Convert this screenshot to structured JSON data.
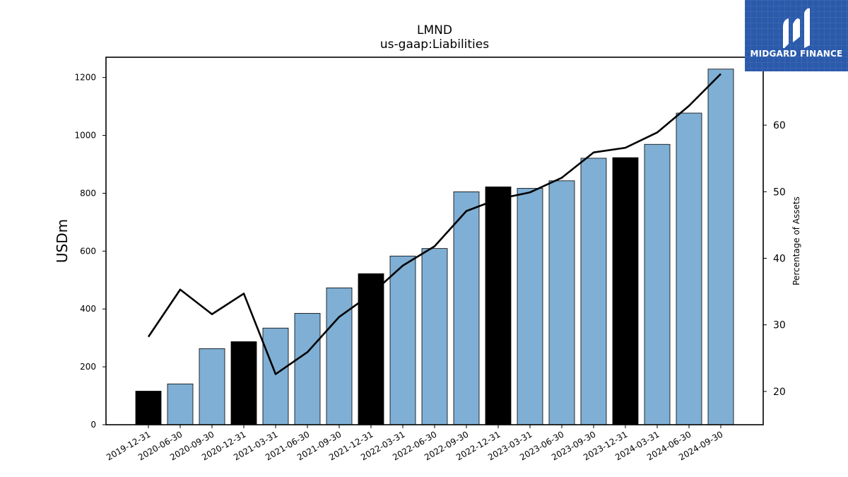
{
  "brand": {
    "name": "MIDGARD FINANCE",
    "logo_icon": "midgard-logo-icon",
    "bg_color": "#2b5aab"
  },
  "chart_data": {
    "type": "bar",
    "title": "LMND",
    "subtitle": "us-gaap:Liabilities",
    "ylabel": "USDm",
    "ylabel_right": "Percentage of Assets",
    "ylim": [
      0,
      1270
    ],
    "ylim_right": [
      15,
      70.2
    ],
    "yticks": [
      0,
      200,
      400,
      600,
      800,
      1000,
      1200
    ],
    "yticks_right": [
      20,
      30,
      40,
      50,
      60
    ],
    "grid": false,
    "categories": [
      "2019-12-31",
      "2020-06-30",
      "2020-09-30",
      "2020-12-31",
      "2021-03-31",
      "2021-06-30",
      "2021-09-30",
      "2021-12-31",
      "2022-03-31",
      "2022-06-30",
      "2022-09-30",
      "2022-12-31",
      "2023-03-31",
      "2023-06-30",
      "2023-09-30",
      "2023-12-31",
      "2024-03-31",
      "2024-06-30",
      "2024-09-30"
    ],
    "series": [
      {
        "values": [
          116,
          141,
          263,
          287,
          334,
          385,
          473,
          522,
          583,
          609,
          805,
          822,
          817,
          843,
          921,
          923,
          969,
          1077,
          1229
        ],
        "highlight": [
          true,
          false,
          false,
          true,
          false,
          false,
          false,
          true,
          false,
          false,
          false,
          true,
          false,
          false,
          false,
          true,
          false,
          false,
          false
        ],
        "color": "#7fafd4",
        "highlight_color": "#000000"
      },
      {
        "axis": "right",
        "type": "line",
        "color": "#000000",
        "values": [
          28.2,
          35.3,
          31.6,
          34.7,
          22.6,
          25.9,
          31.2,
          34.6,
          38.9,
          41.8,
          47.1,
          48.9,
          49.9,
          52.1,
          55.9,
          56.6,
          58.9,
          62.9,
          67.7
        ]
      }
    ]
  }
}
